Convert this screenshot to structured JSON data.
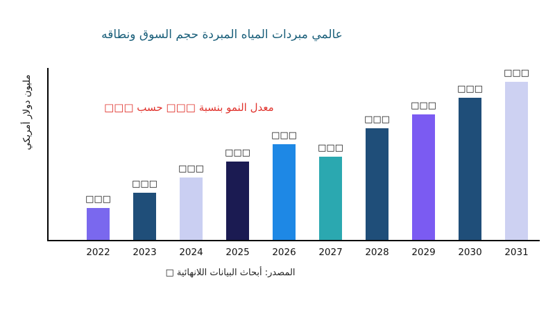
{
  "chart_data": {
    "type": "bar",
    "title": "عالمي مبردات المياه المبردة حجم السوق ونطاقه",
    "ylabel": "مليون دولار أمريكي",
    "xlabel": "",
    "annotation": "معدل النمو بنسبة □□□ حسب □□□",
    "source": "المصدر: أبحاث البيانات اللانهائية □",
    "categories": [
      "2022",
      "2023",
      "2024",
      "2025",
      "2026",
      "2027",
      "2028",
      "2029",
      "2030",
      "2031"
    ],
    "values": [
      46,
      68,
      90,
      113,
      138,
      120,
      161,
      181,
      205,
      229
    ],
    "values_note": "Bar value labels are redacted placeholder boxes (□□□) in the source image; values are estimated relative bar heights in arbitrary units.",
    "bar_labels": [
      "□□□",
      "□□□",
      "□□□",
      "□□□",
      "□□□",
      "□□□",
      "□□□",
      "□□□",
      "□□□",
      "□□□"
    ],
    "bar_colors": [
      "#7A68EE",
      "#1F4E79",
      "#CACFF2",
      "#1B1B52",
      "#1E88E5",
      "#2BA8B0",
      "#1F4E79",
      "#7B5BF2",
      "#1F4E79",
      "#CDD1F2"
    ],
    "ylim": [
      0,
      248
    ],
    "grid": false,
    "legend": null,
    "colors": {
      "title": "#1A5F7A",
      "annotation": "#E0312B",
      "axis": "#000000",
      "tick": "#111111",
      "background": "#FFFFFF"
    }
  }
}
